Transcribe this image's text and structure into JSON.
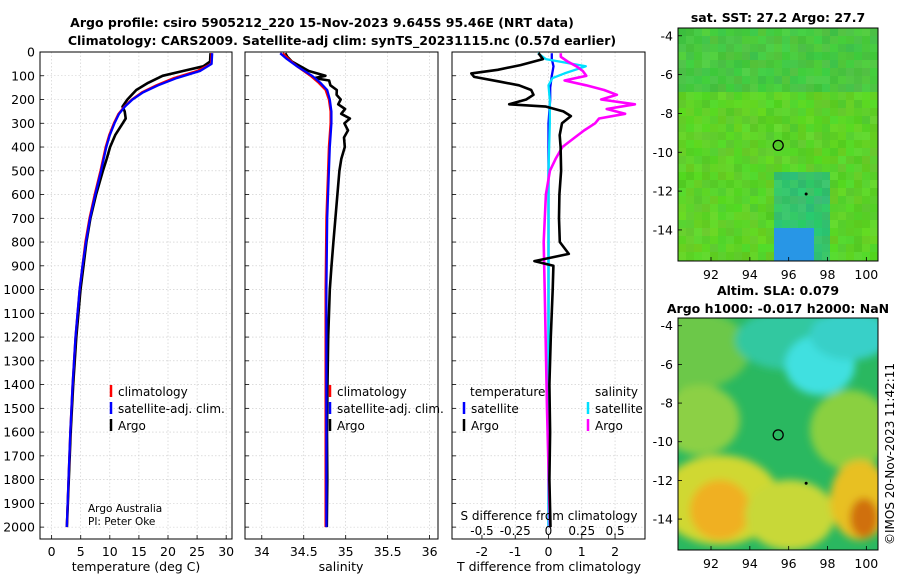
{
  "header": {
    "title_line1": "Argo profile: csiro 5905212_220 15-Nov-2023 9.645S 95.46E (NRT data)",
    "title_line2": "Climatology: CARS2009. Satellite-adj clim: synTS_20231115.nc (0.57d earlier)"
  },
  "colors": {
    "argo": "#000000",
    "climatology": "#ff0000",
    "satellite": "#0000ff",
    "satellite_salinity": "#00e0ff",
    "argo_salinity": "#ff00ff"
  },
  "chart_data": [
    {
      "type": "line",
      "name": "temperature-profile",
      "xlabel": "temperature (deg C)",
      "ylabel": "depth",
      "xlim": [
        -2,
        31
      ],
      "ylim": [
        2050,
        0
      ],
      "xticks": [
        "0",
        "5",
        "10",
        "15",
        "20",
        "25",
        "30"
      ],
      "yticks": [
        "0",
        "100",
        "200",
        "300",
        "400",
        "500",
        "600",
        "700",
        "800",
        "900",
        "1000",
        "1100",
        "1200",
        "1300",
        "1400",
        "1500",
        "1600",
        "1700",
        "1800",
        "1900",
        "2000"
      ],
      "legend": {
        "climatology": "climatology",
        "satellite": "satellite-adj. clim.",
        "argo": "Argo"
      },
      "credit": [
        "Argo Australia",
        "PI: Peter Oke"
      ],
      "series": [
        {
          "name": "Argo",
          "depth": [
            5,
            40,
            60,
            80,
            100,
            130,
            160,
            200,
            230,
            250,
            280,
            300,
            350,
            400,
            450,
            500,
            600,
            700,
            800,
            900,
            1000,
            1200,
            1400,
            1600,
            1800,
            2000
          ],
          "values": [
            27.3,
            27.2,
            26.0,
            22.5,
            19.0,
            16.5,
            14.5,
            13.0,
            12.2,
            12.6,
            12.8,
            12.3,
            11.0,
            10.1,
            9.5,
            8.8,
            7.6,
            6.6,
            5.9,
            5.4,
            4.9,
            4.2,
            3.7,
            3.3,
            3.0,
            2.7
          ]
        },
        {
          "name": "climatology",
          "depth": [
            5,
            50,
            80,
            110,
            140,
            170,
            200,
            230,
            260,
            300,
            350,
            400,
            500,
            600,
            700,
            800,
            900,
            1000,
            1200,
            1400,
            1600,
            1800,
            2000
          ],
          "values": [
            27.5,
            27.4,
            25.0,
            21.0,
            18.0,
            15.5,
            13.8,
            12.5,
            11.5,
            10.7,
            9.9,
            9.3,
            8.4,
            7.4,
            6.5,
            5.8,
            5.3,
            4.8,
            4.1,
            3.6,
            3.2,
            2.9,
            2.6
          ]
        },
        {
          "name": "satellite-adj. clim.",
          "depth": [
            5,
            50,
            80,
            110,
            140,
            170,
            200,
            230,
            260,
            300,
            350,
            400,
            500,
            600,
            700,
            800,
            900,
            1000,
            1200,
            1400,
            1600,
            1800,
            2000
          ],
          "values": [
            27.6,
            27.5,
            25.5,
            21.5,
            18.3,
            15.7,
            13.9,
            12.6,
            11.6,
            10.8,
            10.0,
            9.4,
            8.5,
            7.5,
            6.6,
            5.9,
            5.3,
            4.8,
            4.1,
            3.6,
            3.2,
            2.9,
            2.6
          ]
        }
      ]
    },
    {
      "type": "line",
      "name": "salinity-profile",
      "xlabel": "salinity",
      "xlim": [
        33.8,
        36.1
      ],
      "ylim": [
        2050,
        0
      ],
      "xticks": [
        "34",
        "34.5",
        "35",
        "35.5",
        "36"
      ],
      "legend": {
        "climatology": "climatology",
        "satellite": "satellite-adj. clim.",
        "argo": "Argo"
      },
      "series": [
        {
          "name": "Argo",
          "depth": [
            5,
            20,
            40,
            60,
            80,
            100,
            110,
            120,
            140,
            160,
            180,
            200,
            220,
            240,
            260,
            280,
            300,
            330,
            360,
            400,
            450,
            500,
            600,
            700,
            800,
            900,
            1000,
            1200,
            1400,
            1600,
            1800,
            2000
          ],
          "values": [
            34.28,
            34.3,
            34.35,
            34.45,
            34.55,
            34.75,
            34.62,
            34.8,
            34.82,
            34.9,
            34.9,
            34.95,
            34.92,
            35.0,
            34.95,
            35.05,
            34.98,
            35.02,
            34.97,
            34.98,
            34.94,
            34.92,
            34.9,
            34.88,
            34.86,
            34.84,
            34.82,
            34.8,
            34.79,
            34.78,
            34.78,
            34.77
          ]
        },
        {
          "name": "climatology",
          "depth": [
            5,
            30,
            60,
            100,
            130,
            160,
            200,
            250,
            300,
            400,
            500,
            700,
            1000,
            1500,
            2000
          ],
          "values": [
            34.25,
            34.32,
            34.42,
            34.58,
            34.68,
            34.76,
            34.8,
            34.82,
            34.82,
            34.8,
            34.79,
            34.77,
            34.76,
            34.76,
            34.76
          ]
        },
        {
          "name": "satellite-adj. clim.",
          "depth": [
            5,
            30,
            60,
            100,
            130,
            160,
            200,
            250,
            300,
            400,
            500,
            700,
            1000,
            1500,
            2000
          ],
          "values": [
            34.22,
            34.3,
            34.42,
            34.6,
            34.7,
            34.78,
            34.81,
            34.83,
            34.83,
            34.81,
            34.8,
            34.78,
            34.77,
            34.77,
            34.77
          ]
        }
      ]
    },
    {
      "type": "line",
      "name": "difference-profile",
      "xlabel": "T difference from climatology",
      "xlabel_top": "S difference from climatology",
      "xlim": [
        -2.9,
        2.9
      ],
      "ylim": [
        2050,
        0
      ],
      "xticks": [
        "-2",
        "-1",
        "0",
        "1",
        "2"
      ],
      "sticks": [
        "-0.5",
        "-0.25",
        "0",
        "0.25",
        "0.5"
      ],
      "legend": {
        "temperature": "temperature",
        "salinity": "salinity",
        "satellite_t": "satellite",
        "argo_t": "Argo",
        "satellite_s": "satellite",
        "argo_s": "Argo"
      },
      "series": [
        {
          "name": "T Argo",
          "depth": [
            5,
            30,
            55,
            75,
            90,
            105,
            125,
            140,
            160,
            180,
            200,
            220,
            230,
            250,
            270,
            300,
            350,
            400,
            500,
            600,
            700,
            800,
            850,
            880,
            900,
            1000,
            1200,
            1400,
            1600,
            1800,
            2000
          ],
          "values": [
            -0.3,
            -0.2,
            -0.9,
            -1.6,
            -2.4,
            -2.3,
            -1.5,
            -0.9,
            -0.5,
            -0.4,
            -0.6,
            -1.1,
            0.0,
            0.5,
            0.7,
            0.4,
            0.3,
            0.3,
            0.3,
            0.25,
            0.25,
            0.3,
            0.6,
            -0.4,
            0.2,
            0.2,
            0.15,
            0.1,
            0.1,
            0.05,
            0.05
          ]
        },
        {
          "name": "T satellite",
          "depth": [
            5,
            30,
            60,
            100,
            150,
            200,
            300,
            500,
            800,
            1200,
            1600,
            2000
          ],
          "values": [
            0.1,
            0.1,
            0.15,
            0.1,
            0.05,
            0.05,
            0.0,
            0.0,
            0.0,
            0.0,
            0.0,
            0.0
          ]
        },
        {
          "name": "S Argo",
          "depth": [
            5,
            20,
            40,
            60,
            80,
            100,
            120,
            140,
            160,
            180,
            200,
            220,
            240,
            260,
            280,
            300,
            330,
            360,
            400,
            450,
            500,
            600,
            800,
            1000,
            1500,
            2000
          ],
          "values": [
            0.02,
            0.04,
            0.12,
            0.22,
            0.3,
            0.35,
            0.2,
            0.36,
            0.48,
            0.55,
            0.4,
            0.62,
            0.38,
            0.5,
            0.3,
            0.28,
            0.22,
            0.18,
            0.12,
            0.1,
            0.08,
            0.06,
            0.04,
            0.03,
            0.02,
            0.01
          ]
        },
        {
          "name": "S satellite",
          "depth": [
            5,
            30,
            60,
            90,
            110,
            140,
            200,
            300,
            500,
            1000,
            1500,
            2000
          ],
          "values": [
            -0.08,
            -0.02,
            0.28,
            0.12,
            0.03,
            0.0,
            0.01,
            0.01,
            0.0,
            0.0,
            0.0,
            0.0
          ]
        }
      ]
    },
    {
      "type": "heatmap",
      "name": "sst-map",
      "title": "sat. SST: 27.2  Argo: 27.7",
      "xlim": [
        90.3,
        100.6
      ],
      "ylim": [
        -15.6,
        -3.6
      ],
      "xticks": [
        "92",
        "94",
        "96",
        "98",
        "100"
      ],
      "yticks": [
        "-4",
        "-6",
        "-8",
        "-10",
        "-12",
        "-14"
      ],
      "marker": {
        "lon": 95.46,
        "lat": -9.645
      }
    },
    {
      "type": "heatmap",
      "name": "sla-map",
      "title_line1": "Altim. SLA: 0.079",
      "title_line2": "Argo h1000: -0.017 h2000: NaN",
      "xlim": [
        90.3,
        100.6
      ],
      "ylim": [
        -15.6,
        -3.6
      ],
      "xticks": [
        "92",
        "94",
        "96",
        "98",
        "100"
      ],
      "yticks": [
        "-4",
        "-6",
        "-8",
        "-10",
        "-12",
        "-14"
      ],
      "marker": {
        "lon": 95.46,
        "lat": -9.645
      }
    }
  ],
  "footer": {
    "stamp": "©IMOS 20-Nov-2023 11:42:11"
  }
}
